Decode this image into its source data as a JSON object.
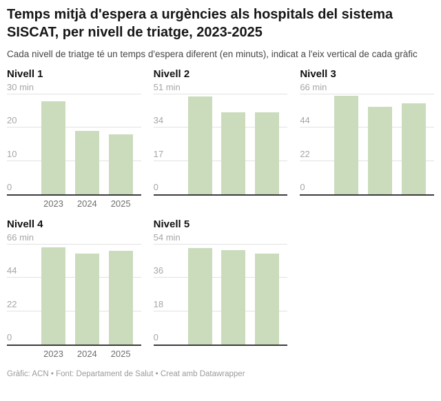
{
  "header": {
    "title": "Temps mitjà d'espera a urgències als hospitals del sistema SISCAT, per nivell de triatge, 2023-2025",
    "subtitle": "Cada nivell de triatge té un temps d'espera diferent (en minuts), indicat a l'eix vertical de cada gràfic"
  },
  "footer": {
    "credit": "Gràfic: ACN • Font: Departament de Salut • Creat amb Datawrapper"
  },
  "colors": {
    "bar": "#cadcbc",
    "grid": "#e2e2e2",
    "axis": "#3b3b3b",
    "tick_label": "#a5a5a5",
    "year_label": "#6e6e6e"
  },
  "chart_data": {
    "type": "bar",
    "layout": "small-multiples",
    "unit": "min",
    "categories": [
      "2023",
      "2024",
      "2025"
    ],
    "charts": [
      {
        "title": "Nivell 1",
        "ymax": 30,
        "ticks": [
          0,
          10,
          20,
          30
        ],
        "max_tick_label": "30 min",
        "values": [
          28,
          19,
          18
        ],
        "show_x_labels": true
      },
      {
        "title": "Nivell 2",
        "ymax": 51,
        "ticks": [
          0,
          17,
          34,
          51
        ],
        "max_tick_label": "51 min",
        "values": [
          50,
          42,
          42
        ],
        "show_x_labels": false
      },
      {
        "title": "Nivell 3",
        "ymax": 66,
        "ticks": [
          0,
          22,
          44,
          66
        ],
        "max_tick_label": "66 min",
        "values": [
          65,
          58,
          60
        ],
        "show_x_labels": false
      },
      {
        "title": "Nivell 4",
        "ymax": 66,
        "ticks": [
          0,
          22,
          44,
          66
        ],
        "max_tick_label": "66 min",
        "values": [
          64,
          60,
          62
        ],
        "show_x_labels": true
      },
      {
        "title": "Nivell 5",
        "ymax": 54,
        "ticks": [
          0,
          18,
          36,
          54
        ],
        "max_tick_label": "54 min",
        "values": [
          52,
          51,
          49
        ],
        "show_x_labels": false
      }
    ]
  }
}
